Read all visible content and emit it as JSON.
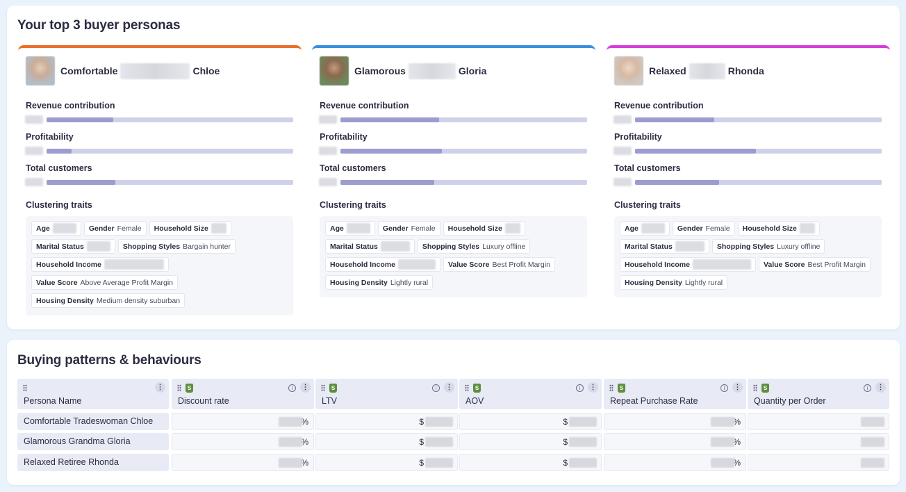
{
  "personas_section": {
    "title": "Your top 3 buyer personas",
    "metric_labels": [
      "Revenue contribution",
      "Profitability",
      "Total customers"
    ],
    "traits_label": "Clustering traits",
    "cards": [
      {
        "first": "Comfortable",
        "last": "Chloe",
        "accent": "#e8702a",
        "metrics": [
          0.27,
          0.1,
          0.28
        ],
        "traits": [
          {
            "key": "Age",
            "value": ""
          },
          {
            "key": "Gender",
            "value": "Female"
          },
          {
            "key": "Household Size",
            "value": ""
          },
          {
            "key": "Marital Status",
            "value": ""
          },
          {
            "key": "Shopping Styles",
            "value": "Bargain hunter"
          },
          {
            "key": "Household Income",
            "value": ""
          },
          {
            "key": "Value Score",
            "value": "Above Average Profit Margin"
          },
          {
            "key": "Housing Density",
            "value": "Medium density suburban"
          }
        ]
      },
      {
        "first": "Glamorous",
        "last": "Gloria",
        "accent": "#3b8fe0",
        "metrics": [
          0.4,
          0.41,
          0.38
        ],
        "traits": [
          {
            "key": "Age",
            "value": ""
          },
          {
            "key": "Gender",
            "value": "Female"
          },
          {
            "key": "Household Size",
            "value": ""
          },
          {
            "key": "Marital Status",
            "value": ""
          },
          {
            "key": "Shopping Styles",
            "value": "Luxury offline"
          },
          {
            "key": "Household Income",
            "value": ""
          },
          {
            "key": "Value Score",
            "value": "Best Profit Margin"
          },
          {
            "key": "Housing Density",
            "value": "Lightly rural"
          }
        ]
      },
      {
        "first": "Relaxed",
        "last": "Rhonda",
        "accent": "#d43fd8",
        "metrics": [
          0.32,
          0.49,
          0.34
        ],
        "traits": [
          {
            "key": "Age",
            "value": ""
          },
          {
            "key": "Gender",
            "value": "Female"
          },
          {
            "key": "Household Size",
            "value": ""
          },
          {
            "key": "Marital Status",
            "value": ""
          },
          {
            "key": "Shopping Styles",
            "value": "Luxury offline"
          },
          {
            "key": "Household Income",
            "value": ""
          },
          {
            "key": "Value Score",
            "value": "Best Profit Margin"
          },
          {
            "key": "Housing Density",
            "value": "Lightly rural"
          }
        ]
      }
    ]
  },
  "patterns_section": {
    "title": "Buying patterns & behaviours",
    "columns": [
      "Persona Name",
      "Discount rate",
      "LTV",
      "AOV",
      "Repeat Purchase Rate",
      "Quantity per Order"
    ],
    "rows": [
      "Comfortable Tradeswoman Chloe",
      "Glamorous Grandma Gloria",
      "Relaxed Retiree Rhonda"
    ],
    "column_units": [
      "",
      "%",
      "$",
      "$",
      "%",
      ""
    ],
    "info_icon": "i",
    "menu_icon": "⋮",
    "shop_icon": "S"
  }
}
